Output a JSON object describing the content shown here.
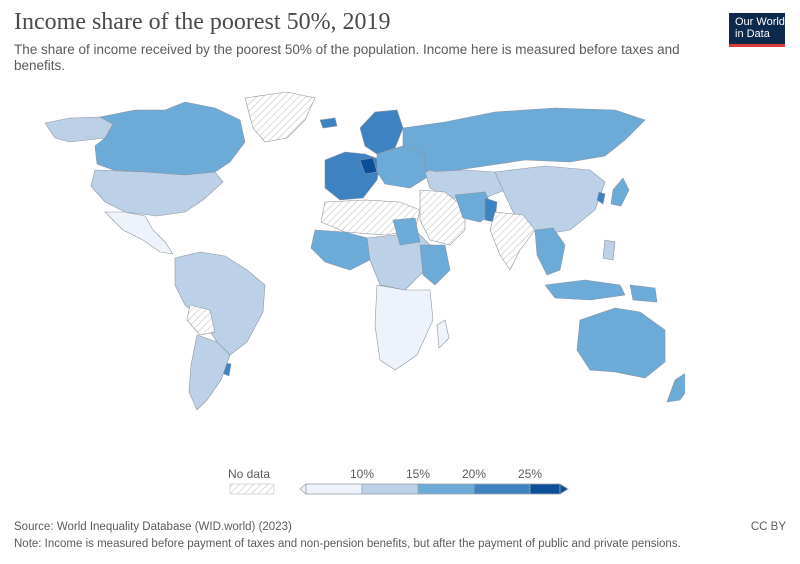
{
  "header": {
    "title": "Income share of the poorest 50%, 2019",
    "subtitle": "The share of income received by the poorest 50% of the population. Income here is measured before taxes and benefits.",
    "logo_line1": "Our World",
    "logo_line2": "in Data"
  },
  "colors": {
    "no_data_stroke": "#cfcfcf",
    "bin0": "#eef3fb",
    "bin1": "#bcd1e7",
    "bin2": "#6caad7",
    "bin3": "#3d83c2",
    "bin4": "#0b4f99",
    "border": "#9aa3ad"
  },
  "legend": {
    "no_data_label": "No data",
    "ticks": [
      "10%",
      "15%",
      "20%",
      "25%"
    ]
  },
  "footer": {
    "source": "Source: World Inequality Database (WID.world) (2023)",
    "note": "Note: Income is measured before payment of taxes and non-pension benefits, but after the payment of public and private pensions.",
    "license": "CC BY"
  }
}
